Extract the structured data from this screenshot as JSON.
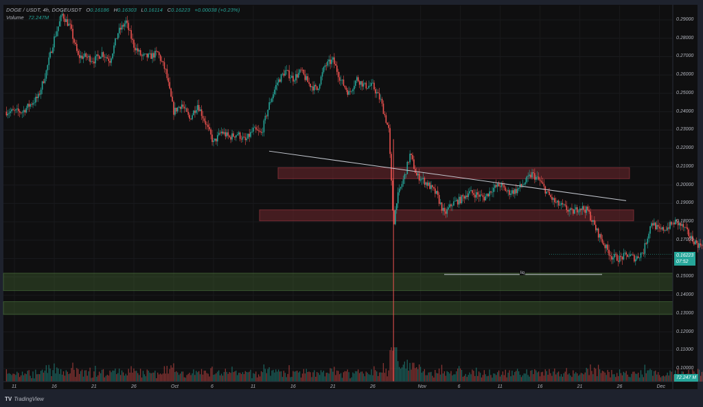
{
  "header": {
    "symbol": "DOGE / USDT, 4h, DOGEUSDT",
    "open_label": "O",
    "open": "0.16186",
    "high_label": "H",
    "high": "0.16303",
    "low_label": "L",
    "low": "0.16114",
    "close_label": "C",
    "close": "0.16223",
    "change": "+0.00038 (+0.23%)",
    "volume_label": "Volume",
    "volume_value": "72.247M"
  },
  "price_tag": {
    "price": "0.16223",
    "countdown": "07:52"
  },
  "volume_tag": "72.247 M",
  "branding": "TradingView",
  "annotation": {
    "liq_label": "liq"
  },
  "colors": {
    "up": "#26a69a",
    "down": "#ef5350",
    "background": "#0f0f10",
    "frame": "#1e222d",
    "supply_zone": "#7a2a30",
    "demand_zone": "#3b5a2e",
    "trendline": "#c8ccd4"
  },
  "chart_data": {
    "type": "candlestick",
    "title": "DOGE / USDT, 4h, DOGEUSDT",
    "interval": "4h",
    "y_axis": {
      "ticks": [
        "0.29000",
        "0.28000",
        "0.27000",
        "0.26000",
        "0.25000",
        "0.24000",
        "0.23000",
        "0.22000",
        "0.21000",
        "0.20000",
        "0.19000",
        "0.18000",
        "0.17000",
        "0.15000",
        "0.14000",
        "0.13000",
        "0.12000",
        "0.11000",
        "0.10000"
      ],
      "range": [
        0.095,
        0.295
      ]
    },
    "x_axis": {
      "ticks": [
        "11",
        "16",
        "21",
        "26",
        "Oct",
        "6",
        "11",
        "16",
        "21",
        "26",
        "Nov",
        "6",
        "11",
        "16",
        "21",
        "26",
        "Dec"
      ],
      "range": [
        "Sep 10",
        "Dec 3"
      ]
    },
    "last_price": 0.16223,
    "price_path": [
      [
        0,
        0.24
      ],
      [
        2,
        0.24
      ],
      [
        3,
        0.244
      ],
      [
        4,
        0.248
      ],
      [
        5,
        0.262
      ],
      [
        6,
        0.28
      ],
      [
        7,
        0.293
      ],
      [
        8,
        0.286
      ],
      [
        9,
        0.27
      ],
      [
        10,
        0.27
      ],
      [
        11,
        0.268
      ],
      [
        12,
        0.272
      ],
      [
        13,
        0.268
      ],
      [
        14,
        0.283
      ],
      [
        15,
        0.289
      ],
      [
        16,
        0.276
      ],
      [
        17,
        0.27
      ],
      [
        18,
        0.27
      ],
      [
        19,
        0.272
      ],
      [
        20,
        0.262
      ],
      [
        21,
        0.24
      ],
      [
        22,
        0.244
      ],
      [
        23,
        0.236
      ],
      [
        24,
        0.244
      ],
      [
        25,
        0.234
      ],
      [
        26,
        0.223
      ],
      [
        27,
        0.229
      ],
      [
        28,
        0.226
      ],
      [
        29,
        0.228
      ],
      [
        30,
        0.224
      ],
      [
        31,
        0.23
      ],
      [
        32,
        0.228
      ],
      [
        33,
        0.244
      ],
      [
        34,
        0.256
      ],
      [
        35,
        0.262
      ],
      [
        36,
        0.258
      ],
      [
        37,
        0.262
      ],
      [
        38,
        0.255
      ],
      [
        39,
        0.252
      ],
      [
        40,
        0.265
      ],
      [
        41,
        0.268
      ],
      [
        42,
        0.257
      ],
      [
        43,
        0.25
      ],
      [
        44,
        0.258
      ],
      [
        45,
        0.254
      ],
      [
        46,
        0.254
      ],
      [
        47,
        0.246
      ],
      [
        48,
        0.23
      ],
      [
        48.6,
        0.178
      ],
      [
        49,
        0.192
      ],
      [
        50,
        0.205
      ],
      [
        50.7,
        0.217
      ],
      [
        51.5,
        0.205
      ],
      [
        52,
        0.204
      ],
      [
        53,
        0.2
      ],
      [
        54,
        0.195
      ],
      [
        55,
        0.184
      ],
      [
        56,
        0.19
      ],
      [
        57,
        0.192
      ],
      [
        58,
        0.196
      ],
      [
        59,
        0.195
      ],
      [
        60,
        0.193
      ],
      [
        61,
        0.198
      ],
      [
        62,
        0.2
      ],
      [
        63,
        0.196
      ],
      [
        64,
        0.197
      ],
      [
        65,
        0.201
      ],
      [
        66,
        0.206
      ],
      [
        67,
        0.202
      ],
      [
        68,
        0.195
      ],
      [
        69,
        0.19
      ],
      [
        70,
        0.188
      ],
      [
        71,
        0.185
      ],
      [
        72,
        0.188
      ],
      [
        73,
        0.186
      ],
      [
        74,
        0.176
      ],
      [
        75,
        0.168
      ],
      [
        76,
        0.161
      ],
      [
        77,
        0.16
      ],
      [
        78,
        0.162
      ],
      [
        79,
        0.16
      ],
      [
        80,
        0.164
      ],
      [
        81,
        0.18
      ],
      [
        82,
        0.175
      ],
      [
        83,
        0.177
      ],
      [
        84,
        0.18
      ],
      [
        85,
        0.177
      ],
      [
        86,
        0.171
      ],
      [
        87,
        0.167
      ],
      [
        88,
        0.172
      ],
      [
        89,
        0.162
      ],
      [
        90,
        0.163
      ],
      [
        91,
        0.161
      ],
      [
        92,
        0.158
      ],
      [
        93,
        0.162
      ]
    ],
    "volume": {
      "last": "72.247M",
      "spike_day": 48.7
    },
    "annotations": [
      {
        "type": "trendline",
        "from": [
          "Oct 12",
          0.2185
        ],
        "to": [
          "Nov 28",
          0.1915
        ]
      },
      {
        "type": "supply_zone",
        "top": 0.2095,
        "bottom": 0.2035,
        "from": "Oct 13",
        "to": "Nov 28"
      },
      {
        "type": "supply_zone",
        "top": 0.1865,
        "bottom": 0.1805,
        "from": "Oct 12",
        "to": "Nov 29"
      },
      {
        "type": "demand_zone",
        "top": 0.152,
        "bottom": 0.1425,
        "from": "Sep 10",
        "to": "Dec 3"
      },
      {
        "type": "demand_zone",
        "top": 0.1365,
        "bottom": 0.1295,
        "from": "Sep 10",
        "to": "Dec 3"
      },
      {
        "type": "horizontal_line",
        "label": "liq",
        "price": 0.1513,
        "from": "Nov 4",
        "to": "Nov 24"
      }
    ],
    "grid": true,
    "legend_position": "top-left"
  }
}
